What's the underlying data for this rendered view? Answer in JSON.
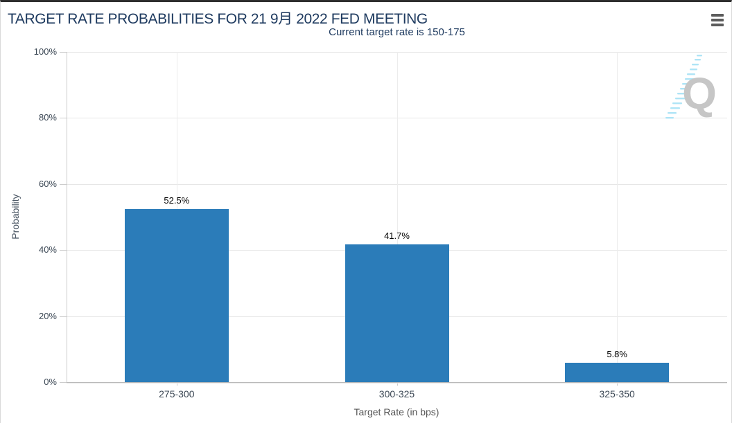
{
  "header": {
    "menu_icon": "hamburger-icon"
  },
  "chart_data": {
    "type": "bar",
    "title": "TARGET RATE PROBABILITIES FOR 21 9月 2022 FED MEETING",
    "subtitle": "Current target rate is 150-175",
    "categories": [
      "275-300",
      "300-325",
      "325-350"
    ],
    "values": [
      52.5,
      41.7,
      5.8
    ],
    "data_labels": [
      "52.5%",
      "41.7%",
      "5.8%"
    ],
    "xlabel": "Target Rate (in bps)",
    "ylabel": "Probability",
    "ylim": [
      0,
      100
    ],
    "ytick_step": 20,
    "ytick_labels": [
      "0%",
      "20%",
      "40%",
      "60%",
      "80%",
      "100%"
    ],
    "grid": true,
    "legend": "none",
    "bar_color": "#2b7cb9",
    "watermark_letter": "Q"
  },
  "colors": {
    "title": "#1e3a5f",
    "bar": "#2b7cb9",
    "axis_label": "#3b4754",
    "axis_title": "#555555",
    "grid": "#e6e6e6",
    "watermark_gray": "#c6c6c6",
    "watermark_blue": "#aee4f6"
  }
}
